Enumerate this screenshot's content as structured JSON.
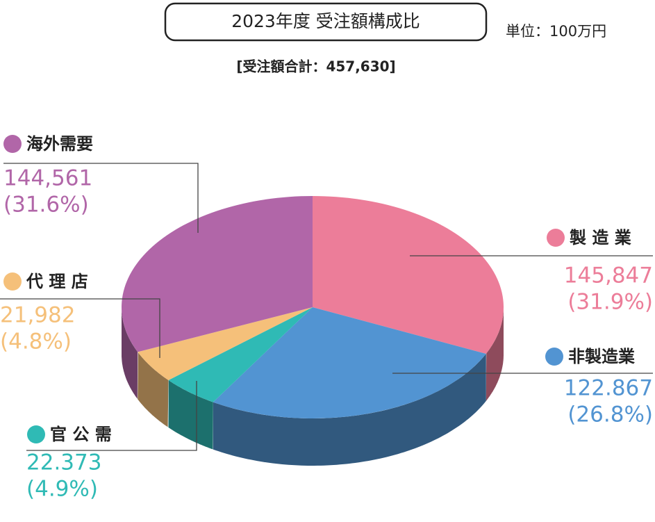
{
  "chart_data": {
    "type": "pie",
    "title": "2023年度 受注額構成比",
    "unit": "単位：100万円",
    "subtitle": "[受注額合計：457,630]",
    "categories": [
      "製 造 業",
      "非製造業",
      "官 公 需",
      "代 理 店",
      "海外需要"
    ],
    "values": [
      145847,
      122867,
      22373,
      21982,
      144561
    ],
    "value_labels": [
      "145,847",
      "122.867",
      "22.373",
      "21,982",
      "144,561"
    ],
    "percents": [
      31.9,
      26.8,
      4.9,
      4.8,
      31.6
    ],
    "percent_labels": [
      "(31.9%)",
      "(26.8%)",
      "(4.9%)",
      "(4.8%)",
      "(31.6%)"
    ],
    "colors": [
      "#ec7d99",
      "#5294d2",
      "#2fbab5",
      "#f5c07a",
      "#b166a8"
    ]
  }
}
